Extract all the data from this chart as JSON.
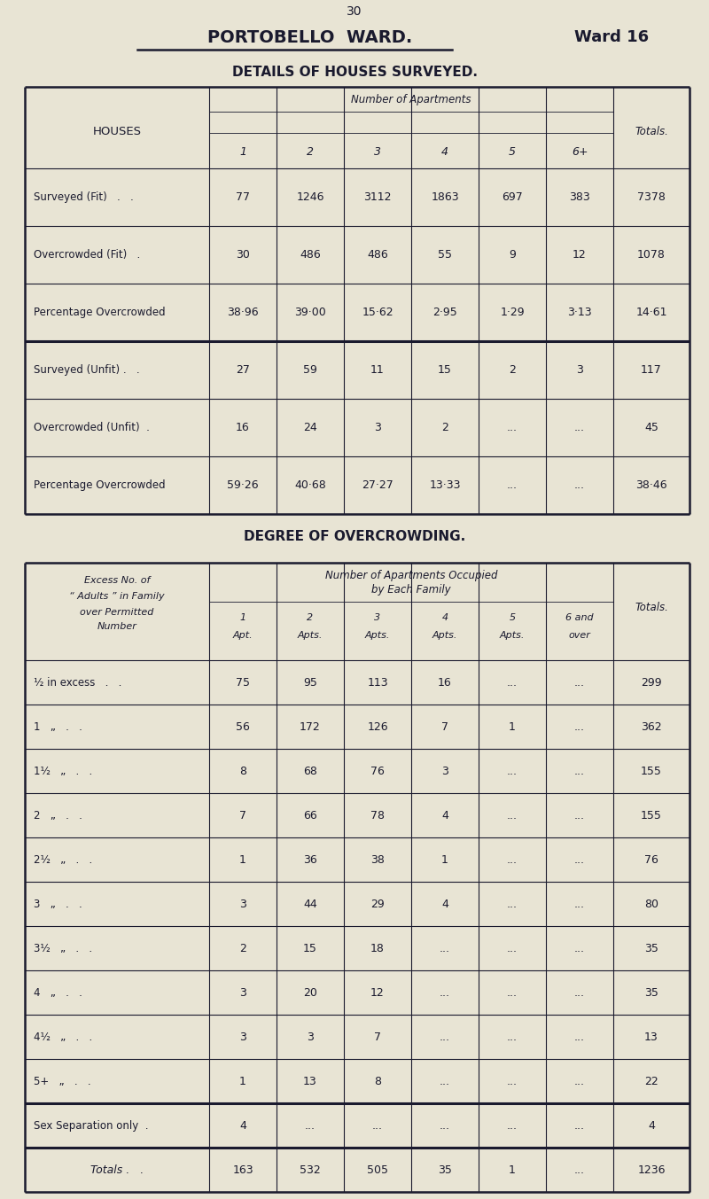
{
  "page_number": "30",
  "title": "PORTOBELLO  WARD.",
  "ward": "Ward 16",
  "section1_header": "DETAILS OF HOUSES SURVEYED.",
  "section2_header": "DEGREE OF OVERCROWDING.",
  "bg_color": "#e8e4d4",
  "text_color": "#1a1a2e",
  "table1": {
    "col_header_row2": [
      "1",
      "2",
      "3",
      "4",
      "5",
      "6+"
    ],
    "rows": [
      {
        "label": "Surveyed (Fit)   .   .",
        "values": [
          "77",
          "1246",
          "3112",
          "1863",
          "697",
          "383",
          "7378"
        ],
        "thick_bottom": false
      },
      {
        "label": "Overcrowded (Fit)   .",
        "values": [
          "30",
          "486",
          "486",
          "55",
          "9",
          "12",
          "1078"
        ],
        "thick_bottom": false
      },
      {
        "label": "Percentage Overcrowded",
        "values": [
          "38·96",
          "39·00",
          "15·62",
          "2·95",
          "1·29",
          "3·13",
          "14·61"
        ],
        "thick_bottom": true
      },
      {
        "label": "Surveyed (Unfit) .   .",
        "values": [
          "27",
          "59",
          "11",
          "15",
          "2",
          "3",
          "117"
        ],
        "thick_bottom": false
      },
      {
        "label": "Overcrowded (Unfit)  .",
        "values": [
          "16",
          "24",
          "3",
          "2",
          "...",
          "...",
          "45"
        ],
        "thick_bottom": false
      },
      {
        "label": "Percentage Overcrowded",
        "values": [
          "59·26",
          "40·68",
          "27·27",
          "13·33",
          "...",
          "...",
          "38·46"
        ],
        "thick_bottom": false
      }
    ]
  },
  "table2": {
    "col_header_row2": [
      "1\nApt.",
      "2\nApts.",
      "3\nApts.",
      "4\nApts.",
      "5\nApts.",
      "6 and\nover"
    ],
    "rows": [
      {
        "label": "½ in excess   .   .",
        "values": [
          "75",
          "95",
          "113",
          "16",
          "...",
          "...",
          "299"
        ],
        "thick_bottom": false
      },
      {
        "label": "1   „   .   .",
        "values": [
          "56",
          "172",
          "126",
          "7",
          "1",
          "...",
          "362"
        ],
        "thick_bottom": false
      },
      {
        "label": "1½   „   .   .",
        "values": [
          "8",
          "68",
          "76",
          "3",
          "...",
          "...",
          "155"
        ],
        "thick_bottom": false
      },
      {
        "label": "2   „   .   .",
        "values": [
          "7",
          "66",
          "78",
          "4",
          "...",
          "...",
          "155"
        ],
        "thick_bottom": false
      },
      {
        "label": "2½   „   .   .",
        "values": [
          "1",
          "36",
          "38",
          "1",
          "...",
          "...",
          "76"
        ],
        "thick_bottom": false
      },
      {
        "label": "3   „   .   .",
        "values": [
          "3",
          "44",
          "29",
          "4",
          "...",
          "...",
          "80"
        ],
        "thick_bottom": false
      },
      {
        "label": "3½   „   .   .",
        "values": [
          "2",
          "15",
          "18",
          "...",
          "...",
          "...",
          "35"
        ],
        "thick_bottom": false
      },
      {
        "label": "4   „   .   .",
        "values": [
          "3",
          "20",
          "12",
          "...",
          "...",
          "...",
          "35"
        ],
        "thick_bottom": false
      },
      {
        "label": "4½   „   .   .",
        "values": [
          "3",
          "3",
          "7",
          "...",
          "...",
          "...",
          "13"
        ],
        "thick_bottom": false
      },
      {
        "label": "5+   „   .   .",
        "values": [
          "1",
          "13",
          "8",
          "...",
          "...",
          "...",
          "22"
        ],
        "thick_bottom": true
      },
      {
        "label": "Sex Separation only  .",
        "values": [
          "4",
          "...",
          "...",
          "...",
          "...",
          "...",
          "4"
        ],
        "thick_bottom": true
      },
      {
        "label": "Totals .   .",
        "values": [
          "163",
          "532",
          "505",
          "35",
          "1",
          "...",
          "1236"
        ],
        "thick_bottom": false,
        "is_total": true
      }
    ]
  }
}
